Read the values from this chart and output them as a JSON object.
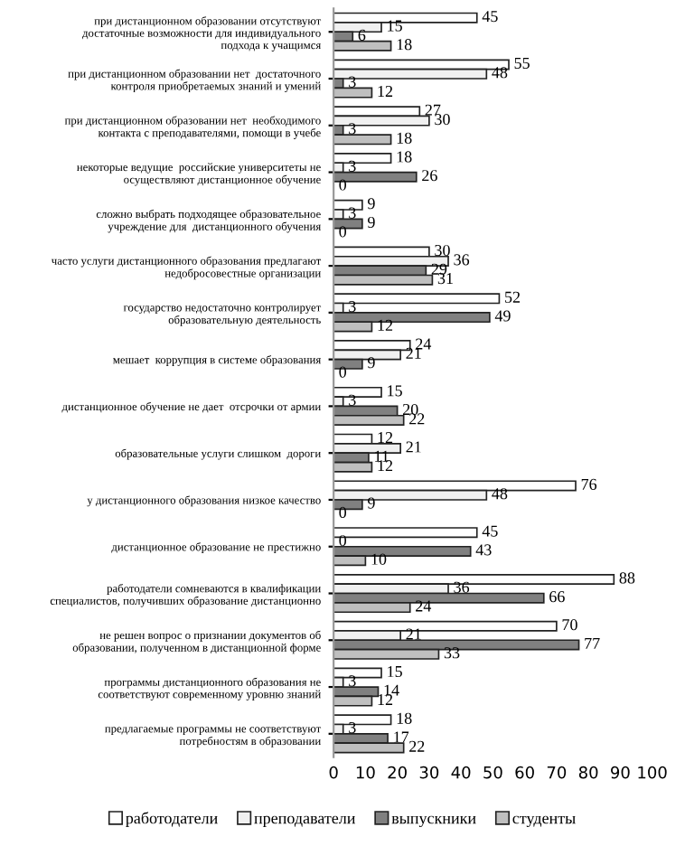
{
  "chart_data": {
    "type": "bar",
    "orientation": "horizontal",
    "categories": [
      "при дистанционном образовании отсутствуют\nдостаточные возможности для индивидуального\nподхода к учащимся",
      "при дистанционном образовании нет  достаточного\nконтроля приобретаемых знаний и умений",
      "при дистанционном образовании нет  необходимого\nконтакта с преподавателями, помощи в учебе",
      "некоторые ведущие  российские университеты не\nосуществляют дистанционное обучение",
      "сложно выбрать подходящее образовательное\nучреждение для  дистанционного обучения",
      "часто услуги дистанционного образования предлагают\nнедобросовестные организации",
      "государство недостаточно контролирует\nобразовательную деятельность",
      "мешает  коррупция в системе образования",
      "дистанционное обучение не дает  отсрочки от армии",
      "образовательные услуги слишком  дороги",
      "у дистанционного образования низкое качество",
      "дистанционное образование не престижно",
      "работодатели сомневаются в квалификации\nспециалистов, получивших образование дистанционно",
      "не решен вопрос о признании документов об\nобразовании, полученном в дистанционной форме",
      "программы дистанционного образования не\nсоответствуют современному уровню знаний",
      "предлагаемые программы не соответствуют\nпотребностям в образовании"
    ],
    "series": [
      {
        "name": "работодатели",
        "color": "#ffffff",
        "values": [
          45,
          55,
          27,
          18,
          9,
          30,
          52,
          24,
          15,
          12,
          76,
          45,
          88,
          70,
          15,
          18
        ]
      },
      {
        "name": "преподаватели",
        "color": "#f0f0f0",
        "values": [
          15,
          48,
          30,
          3,
          3,
          36,
          3,
          21,
          3,
          21,
          48,
          0,
          36,
          21,
          3,
          3
        ]
      },
      {
        "name": "выпускники",
        "color": "#808080",
        "values": [
          6,
          3,
          3,
          26,
          9,
          29,
          49,
          9,
          20,
          11,
          9,
          43,
          66,
          77,
          14,
          17
        ]
      },
      {
        "name": "студенты",
        "color": "#bfbfbf",
        "values": [
          18,
          12,
          18,
          0,
          0,
          31,
          12,
          0,
          22,
          12,
          0,
          10,
          24,
          33,
          12,
          22
        ]
      }
    ],
    "xlim": [
      0,
      100
    ],
    "xticks": [
      0,
      10,
      20,
      30,
      40,
      50,
      60,
      70,
      80,
      90,
      100
    ],
    "data_labels": true,
    "legend": "bottom",
    "grid": false
  }
}
